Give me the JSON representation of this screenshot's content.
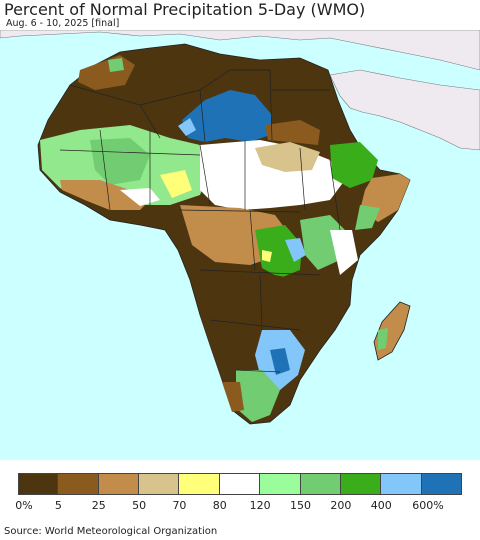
{
  "header": {
    "title": "Percent of Normal Precipitation 5-Day (WMO)",
    "subtitle": "Aug. 6 - 10, 2025 [final]"
  },
  "colors": {
    "ocean": "#ccffff",
    "land_outside": "#efeaf0",
    "border": "#222222"
  },
  "legend": {
    "swatches": [
      {
        "color": "#4d3510"
      },
      {
        "color": "#8b5a1e"
      },
      {
        "color": "#c28c4b"
      },
      {
        "color": "#d8c38c"
      },
      {
        "color": "#ffff7a"
      },
      {
        "color": "#ffffff"
      },
      {
        "color": "#9afc9a"
      },
      {
        "color": "#72cd72"
      },
      {
        "color": "#3aae1a"
      },
      {
        "color": "#82c6fa"
      },
      {
        "color": "#1f72b6"
      }
    ],
    "ticks": [
      "0%",
      "5",
      "25",
      "50",
      "70",
      "80",
      "120",
      "150",
      "200",
      "400",
      "600%"
    ]
  },
  "footer": {
    "source": "Source: World Meteorological Organization"
  }
}
